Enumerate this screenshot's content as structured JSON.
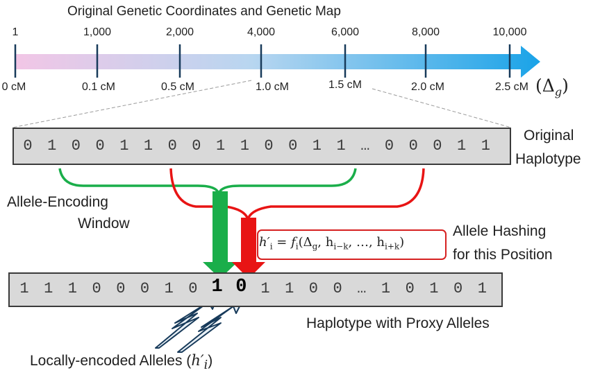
{
  "title": "Original Genetic Coordinates and Genetic Map",
  "coordinate_ticks": [
    {
      "position": "1",
      "cm": "0 cM"
    },
    {
      "position": "1,000",
      "cm": "0.1 cM"
    },
    {
      "position": "2,000",
      "cm": "0.5 cM"
    },
    {
      "position": "4,000",
      "cm": "1.0 cM"
    },
    {
      "position": "6,000",
      "cm": "1.5 cM"
    },
    {
      "position": "8,000",
      "cm": "2.0 cM"
    },
    {
      "position": "10,000",
      "cm": "2.5 cM"
    }
  ],
  "delta_symbol": "(Δ",
  "delta_sub": "g",
  "delta_close": ")",
  "original_haplotype": {
    "bits": [
      "0",
      "1",
      "0",
      "0",
      "1",
      "1",
      "0",
      "0",
      "1",
      "1",
      "0",
      "0",
      "1",
      "1",
      "…",
      "0",
      "0",
      "0",
      "1",
      "1"
    ],
    "label_line1": "Original",
    "label_line2": "Haplotype"
  },
  "window_label_line1": "Allele-Encoding",
  "window_label_line2": "Window",
  "hashing_label_line1": "Allele Hashing",
  "hashing_label_line2": "for this Position",
  "formula": {
    "lhs": "h′",
    "lhs_sub": "i",
    "eq": " = ",
    "fn": "f",
    "fn_sub": "i",
    "args_open": "(Δ",
    "delta_sub": "g",
    "h1": ", h",
    "h1_sub": "i−k",
    "mid": ", …, h",
    "h2_sub": "i+k",
    "close": ")"
  },
  "proxy_haplotype": {
    "bits": [
      "1",
      "1",
      "1",
      "0",
      "0",
      "0",
      "1",
      "0",
      "1",
      "0",
      "1",
      "1",
      "0",
      "0",
      "…",
      "1",
      "0",
      "1",
      "0",
      "1"
    ],
    "bold_indices": [
      8,
      9
    ],
    "label": "Haplotype with Proxy Alleles"
  },
  "local_label": {
    "text": "Locally-encoded Alleles (",
    "sym": "h′",
    "sym_sub": "i",
    "close": ")"
  },
  "colors": {
    "window_green": "#1aae4a",
    "hash_red": "#e81414",
    "arrow_start": "#f2c6e6",
    "arrow_end": "#1aa3e8",
    "box_fill": "#d9d9d9",
    "lightning": "#173a5a"
  }
}
